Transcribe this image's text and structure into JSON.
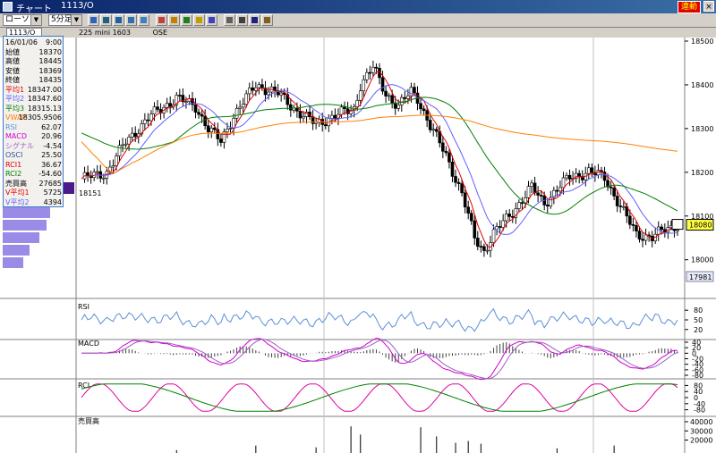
{
  "window": {
    "title": "チャート",
    "code": "1113/O",
    "live_label": "連動",
    "close_label": "×"
  },
  "toolbar": {
    "chart_type": "ローソク",
    "interval": "5分足",
    "buttons": [
      "bar-chart",
      "table",
      "table2",
      "table3",
      "table4",
      "line-tool",
      "fibonacci",
      "compare",
      "zoom",
      "pen",
      "copy",
      "print",
      "help",
      "settings"
    ]
  },
  "code_box": "1113/O",
  "subheader": {
    "contract": "225 mini 1603",
    "exchange": "OSE"
  },
  "info_panel": [
    {
      "label": "16/01/06",
      "value": "9:00",
      "color": "#000000"
    },
    {
      "label": "始値",
      "value": "18370",
      "color": "#000000"
    },
    {
      "label": "高値",
      "value": "18445",
      "color": "#000000"
    },
    {
      "label": "安値",
      "value": "18369",
      "color": "#000000"
    },
    {
      "label": "終値",
      "value": "18435",
      "color": "#000000"
    },
    {
      "label": "平均1",
      "value": "18347.00",
      "color": "#e00000"
    },
    {
      "label": "平均2",
      "value": "18347.60",
      "color": "#6060ff"
    },
    {
      "label": "平均3",
      "value": "18315.13",
      "color": "#008000"
    },
    {
      "label": "VWAP",
      "value": "18305.9506",
      "color": "#ff8000"
    },
    {
      "label": "RSI",
      "value": "62.07",
      "color": "#5b8fd8"
    },
    {
      "label": "MACD",
      "value": "20.96",
      "color": "#d000d0"
    },
    {
      "label": "シグナル",
      "value": "-4.54",
      "color": "#9a60c0"
    },
    {
      "label": "OSCI",
      "value": "25.50",
      "color": "#3050a0"
    },
    {
      "label": "RCI1",
      "value": "36.67",
      "color": "#e00000"
    },
    {
      "label": "RCI2",
      "value": "-54.60",
      "color": "#008000"
    },
    {
      "label": "売買高",
      "value": "27685",
      "color": "#000000"
    },
    {
      "label": "V平均1",
      "value": "5725",
      "color": "#e00000"
    },
    {
      "label": "V平均2",
      "value": "4394",
      "color": "#6060ff"
    }
  ],
  "panes": {
    "price": {
      "ylim": [
        17981,
        18500
      ],
      "ticks": [
        18500,
        18400,
        18300,
        18200,
        18100,
        18000
      ],
      "current_label": "18080",
      "min_label": "17981",
      "low_mark_label": "18151"
    },
    "rsi": {
      "label": "RSI",
      "ylim": [
        0,
        100
      ],
      "ticks": [
        80,
        50,
        20
      ]
    },
    "macd": {
      "label": "MACD",
      "ylim": [
        -80,
        40
      ],
      "ticks": [
        40,
        20,
        0,
        -20,
        -40,
        -60,
        -80
      ]
    },
    "rci": {
      "label": "RCI",
      "ylim": [
        -100,
        100
      ],
      "ticks": [
        80,
        40,
        0,
        -40,
        -80
      ]
    },
    "volume": {
      "label": "売買高",
      "ylim": [
        0,
        40000
      ],
      "ticks": [
        40000,
        30000,
        20000
      ]
    }
  },
  "chart_data": {
    "type": "candlestick",
    "x_count": 160,
    "close_anchors": [
      [
        0,
        18185
      ],
      [
        8,
        18200
      ],
      [
        14,
        18270
      ],
      [
        22,
        18330
      ],
      [
        30,
        18370
      ],
      [
        36,
        18350
      ],
      [
        40,
        18300
      ],
      [
        44,
        18270
      ],
      [
        48,
        18330
      ],
      [
        55,
        18400
      ],
      [
        62,
        18380
      ],
      [
        68,
        18340
      ],
      [
        74,
        18310
      ],
      [
        80,
        18330
      ],
      [
        86,
        18345
      ],
      [
        88,
        18400
      ],
      [
        92,
        18440
      ],
      [
        96,
        18380
      ],
      [
        100,
        18350
      ],
      [
        104,
        18385
      ],
      [
        106,
        18370
      ],
      [
        110,
        18305
      ],
      [
        115,
        18240
      ],
      [
        120,
        18150
      ],
      [
        124,
        18050
      ],
      [
        127,
        18020
      ],
      [
        130,
        18060
      ],
      [
        136,
        18110
      ],
      [
        142,
        18165
      ],
      [
        146,
        18130
      ],
      [
        150,
        18160
      ],
      [
        154,
        18190
      ],
      [
        160,
        18200
      ],
      [
        165,
        18190
      ],
      [
        170,
        18120
      ],
      [
        175,
        18060
      ],
      [
        180,
        18050
      ],
      [
        184,
        18070
      ],
      [
        188,
        18080
      ]
    ],
    "ma_levels": {
      "ma3_start": 18290,
      "vwap_start": 18270
    },
    "volume_bars": [
      {
        "x": 30,
        "v": 9000
      },
      {
        "x": 55,
        "v": 14000
      },
      {
        "x": 74,
        "v": 12000
      },
      {
        "x": 85,
        "v": 35000
      },
      {
        "x": 88,
        "v": 26000
      },
      {
        "x": 107,
        "v": 34000
      },
      {
        "x": 112,
        "v": 24000
      },
      {
        "x": 118,
        "v": 17000
      },
      {
        "x": 122,
        "v": 19000
      },
      {
        "x": 126,
        "v": 16000
      },
      {
        "x": 150,
        "v": 11000
      },
      {
        "x": 168,
        "v": 14000
      }
    ],
    "volume_bars_left": [
      8000,
      7000,
      6500,
      5500,
      4000,
      3000
    ]
  }
}
